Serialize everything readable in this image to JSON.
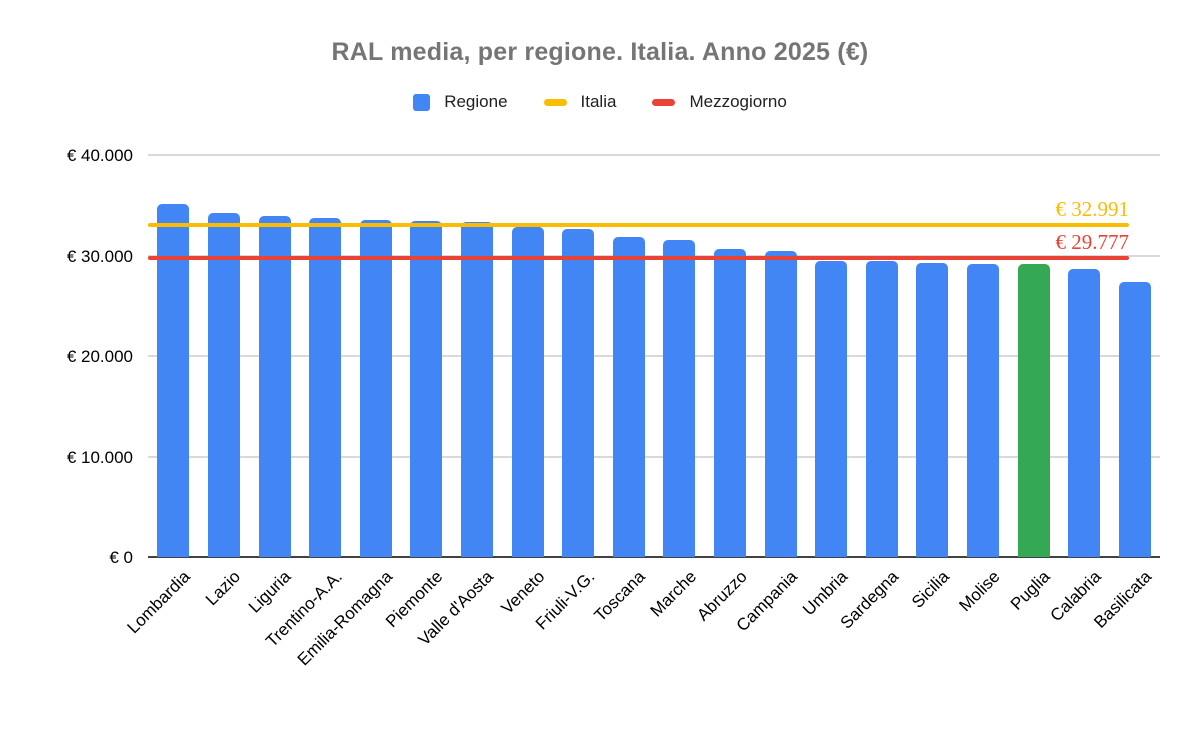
{
  "title": "RAL media, per regione. Italia. Anno 2025 (€)",
  "legend": [
    {
      "label": "Regione",
      "color": "#4285F4",
      "shape": "square"
    },
    {
      "label": "Italia",
      "color": "#FBBC04",
      "shape": "line"
    },
    {
      "label": "Mezzogiorno",
      "color": "#EA4335",
      "shape": "line"
    }
  ],
  "chart_data": {
    "type": "bar",
    "title": "RAL media, per regione. Italia. Anno 2025 (€)",
    "categories": [
      "Lombardia",
      "Lazio",
      "Liguria",
      "Trentino-A.A.",
      "Emilia-Romagna",
      "Piemonte",
      "Valle d'Aosta",
      "Veneto",
      "Friuli-V.G.",
      "Toscana",
      "Marche",
      "Abruzzo",
      "Campania",
      "Umbria",
      "Sardegna",
      "Sicilia",
      "Molise",
      "Puglia",
      "Calabria",
      "Basilicata"
    ],
    "values": [
      35100,
      34200,
      33950,
      33700,
      33500,
      33450,
      33350,
      32800,
      32650,
      31850,
      31550,
      30600,
      30400,
      29500,
      29450,
      29300,
      29150,
      29200,
      28700,
      27400
    ],
    "series_name": "Regione",
    "bar_color": "#4285F4",
    "highlight": {
      "category": "Puglia",
      "color": "#34A853"
    },
    "reference_lines": [
      {
        "name": "Italia",
        "value": 32991,
        "label": "€ 32.991",
        "color": "#FBBC04"
      },
      {
        "name": "Mezzogiorno",
        "value": 29777,
        "label": "€ 29.777",
        "color": "#EA4335"
      }
    ],
    "y_axis": {
      "min": 0,
      "max": 40000,
      "tick_step": 10000,
      "tick_labels": [
        "€ 0",
        "€ 10.000",
        "€ 20.000",
        "€ 30.000",
        "€ 40.000"
      ]
    },
    "xlabel": "",
    "ylabel": "",
    "grid": true,
    "legend_position": "top",
    "x_label_rotation": -45
  }
}
